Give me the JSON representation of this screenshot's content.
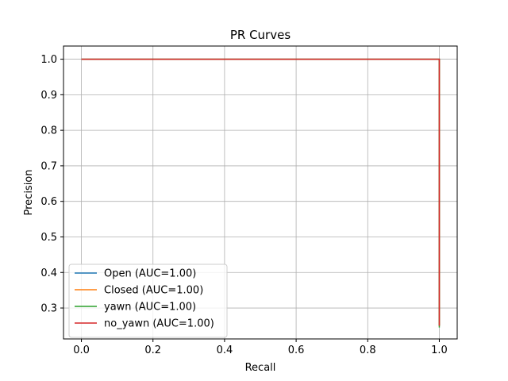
{
  "chart_data": {
    "type": "line",
    "title": "PR Curves",
    "xlabel": "Recall",
    "ylabel": "Precision",
    "xlim": [
      -0.05,
      1.05
    ],
    "ylim": [
      0.213,
      1.037
    ],
    "xticks": [
      0.0,
      0.2,
      0.4,
      0.6,
      0.8,
      1.0
    ],
    "xtick_labels": [
      "0.0",
      "0.2",
      "0.4",
      "0.6",
      "0.8",
      "1.0"
    ],
    "yticks": [
      0.3,
      0.4,
      0.5,
      0.6,
      0.7,
      0.8,
      0.9,
      1.0
    ],
    "ytick_labels": [
      "0.3",
      "0.4",
      "0.5",
      "0.6",
      "0.7",
      "0.8",
      "0.9",
      "1.0"
    ],
    "grid": true,
    "legend_position": "lower-left",
    "series": [
      {
        "name": "Open (AUC=1.00)",
        "color": "#1f77b4",
        "x": [
          0.0,
          1.0,
          1.0
        ],
        "y": [
          1.0,
          1.0,
          0.25
        ]
      },
      {
        "name": "Closed (AUC=1.00)",
        "color": "#ff7f0e",
        "x": [
          0.0,
          1.0,
          1.0
        ],
        "y": [
          1.0,
          1.0,
          0.25
        ]
      },
      {
        "name": "yawn (AUC=1.00)",
        "color": "#2ca02c",
        "x": [
          0.0,
          1.0,
          1.0
        ],
        "y": [
          1.0,
          1.0,
          0.245
        ]
      },
      {
        "name": "no_yawn (AUC=1.00)",
        "color": "#d62728",
        "x": [
          0.0,
          1.0,
          1.0
        ],
        "y": [
          1.0,
          1.0,
          0.25
        ]
      }
    ]
  }
}
